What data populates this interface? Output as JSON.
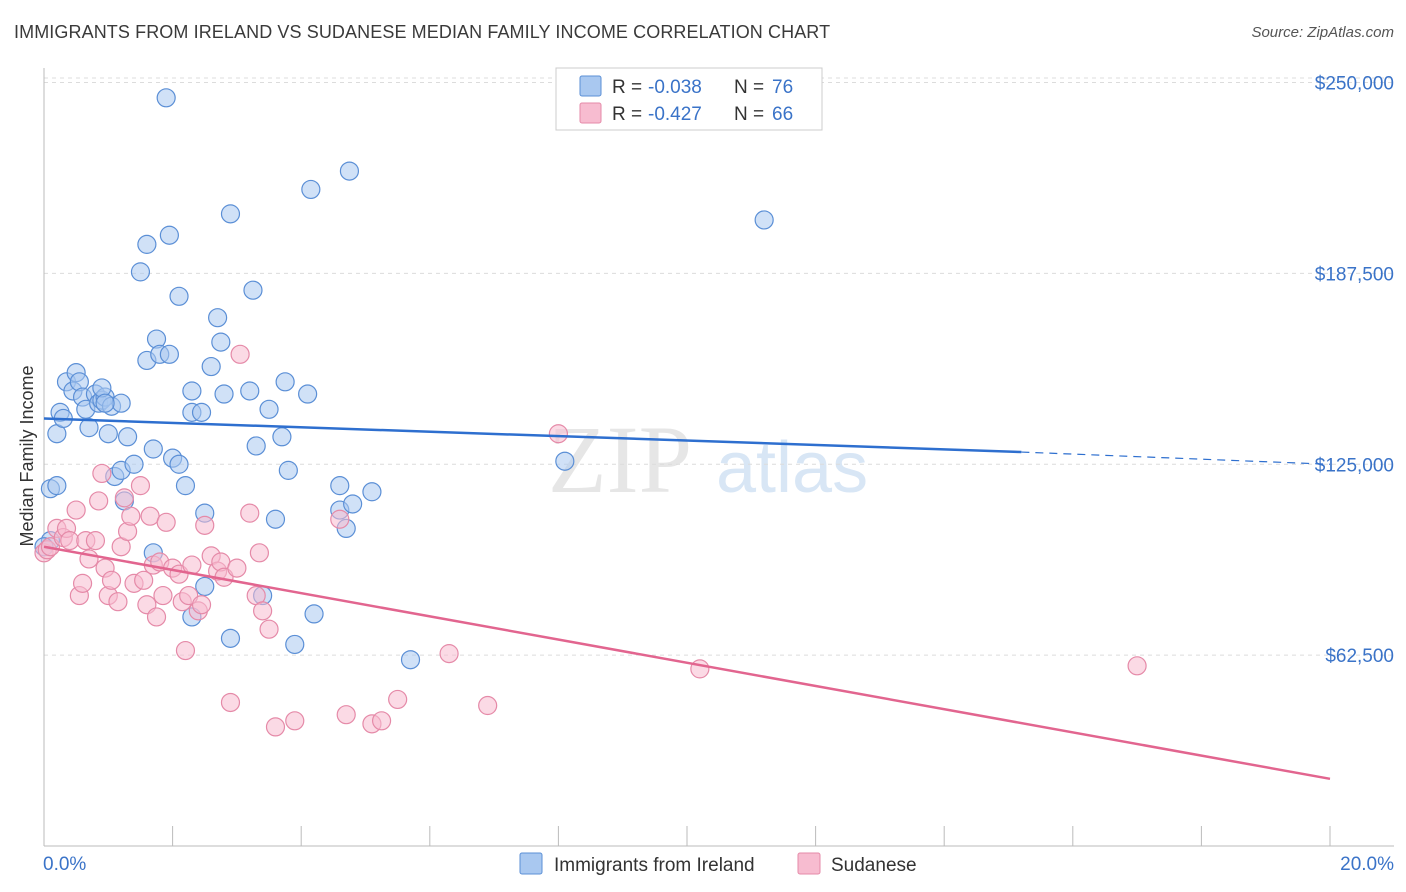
{
  "title": "IMMIGRANTS FROM IRELAND VS SUDANESE MEDIAN FAMILY INCOME CORRELATION CHART",
  "source": "Source: ZipAtlas.com",
  "watermark": {
    "zip": "ZIP",
    "atlas": "atlas"
  },
  "colors": {
    "ireland_fill": "#a9c8f0",
    "ireland_stroke": "#5b8fd6",
    "ireland_line": "#2e6fcf",
    "sudanese_fill": "#f7bcd0",
    "sudanese_stroke": "#e58aa8",
    "sudanese_line": "#e2658f",
    "tick_label": "#3a73c8",
    "grid": "#dcdcdc"
  },
  "legend": {
    "ireland": {
      "r_label": "R = ",
      "r_value": "-0.038",
      "n_label": "N = ",
      "n_value": "76"
    },
    "sudanese": {
      "r_label": "R = ",
      "r_value": "-0.427",
      "n_label": "N = ",
      "n_value": "66"
    }
  },
  "chart_data": {
    "type": "scatter",
    "ylabel": "Median Family Income",
    "xlim": [
      0,
      20
    ],
    "ylim": [
      0,
      260000
    ],
    "x_tick_labels": [
      "0.0%",
      "20.0%"
    ],
    "y_ticks": [
      62500,
      125000,
      187500,
      250000
    ],
    "y_tick_labels": [
      "$62,500",
      "$125,000",
      "$187,500",
      "$250,000"
    ],
    "series": [
      {
        "name": "Immigrants from Ireland",
        "trend": {
          "x0": 0.0,
          "y0": 140000,
          "x1": 15.2,
          "y1": 129000,
          "dash_x1": 20.0,
          "dash_y1": 125000
        },
        "points": [
          [
            0.1,
            117000
          ],
          [
            0.2,
            118000
          ],
          [
            0.1,
            100000
          ],
          [
            0.0,
            98000
          ],
          [
            0.2,
            135000
          ],
          [
            0.25,
            142000
          ],
          [
            0.3,
            140000
          ],
          [
            0.35,
            152000
          ],
          [
            0.45,
            149000
          ],
          [
            0.5,
            155000
          ],
          [
            0.55,
            152000
          ],
          [
            0.6,
            147000
          ],
          [
            0.65,
            143000
          ],
          [
            0.7,
            137000
          ],
          [
            0.8,
            148000
          ],
          [
            0.85,
            145000
          ],
          [
            0.9,
            146000
          ],
          [
            0.95,
            147000
          ],
          [
            0.9,
            150000
          ],
          [
            1.05,
            144000
          ],
          [
            1.2,
            145000
          ],
          [
            1.3,
            134000
          ],
          [
            0.95,
            145000
          ],
          [
            1.0,
            135000
          ],
          [
            1.1,
            121000
          ],
          [
            1.2,
            123000
          ],
          [
            1.25,
            113000
          ],
          [
            1.4,
            125000
          ],
          [
            1.5,
            188000
          ],
          [
            1.6,
            197000
          ],
          [
            1.6,
            159000
          ],
          [
            1.7,
            130000
          ],
          [
            1.75,
            166000
          ],
          [
            1.8,
            161000
          ],
          [
            1.9,
            245000
          ],
          [
            1.95,
            161000
          ],
          [
            1.95,
            200000
          ],
          [
            2.0,
            127000
          ],
          [
            2.1,
            125000
          ],
          [
            2.1,
            180000
          ],
          [
            2.2,
            118000
          ],
          [
            2.3,
            142000
          ],
          [
            2.3,
            149000
          ],
          [
            2.45,
            142000
          ],
          [
            2.5,
            109000
          ],
          [
            2.6,
            157000
          ],
          [
            2.7,
            173000
          ],
          [
            2.75,
            165000
          ],
          [
            2.8,
            148000
          ],
          [
            2.9,
            207000
          ],
          [
            3.2,
            149000
          ],
          [
            3.25,
            182000
          ],
          [
            3.3,
            131000
          ],
          [
            3.4,
            82000
          ],
          [
            3.5,
            143000
          ],
          [
            3.6,
            107000
          ],
          [
            3.7,
            134000
          ],
          [
            3.75,
            152000
          ],
          [
            3.8,
            123000
          ],
          [
            3.9,
            66000
          ],
          [
            4.1,
            148000
          ],
          [
            4.15,
            215000
          ],
          [
            4.2,
            76000
          ],
          [
            4.6,
            118000
          ],
          [
            4.6,
            110000
          ],
          [
            4.7,
            104000
          ],
          [
            4.75,
            221000
          ],
          [
            4.8,
            112000
          ],
          [
            5.1,
            116000
          ],
          [
            5.7,
            61000
          ],
          [
            8.1,
            126000
          ],
          [
            11.2,
            205000
          ],
          [
            1.7,
            96000
          ],
          [
            2.5,
            85000
          ],
          [
            2.9,
            68000
          ],
          [
            2.3,
            75000
          ]
        ]
      },
      {
        "name": "Sudanese",
        "trend": {
          "x0": 0.0,
          "y0": 98000,
          "x1": 20.0,
          "y1": 22000
        },
        "points": [
          [
            0.0,
            96000
          ],
          [
            0.05,
            97000
          ],
          [
            0.1,
            98000
          ],
          [
            0.2,
            104000
          ],
          [
            0.3,
            101000
          ],
          [
            0.35,
            104000
          ],
          [
            0.4,
            100000
          ],
          [
            0.5,
            110000
          ],
          [
            0.55,
            82000
          ],
          [
            0.6,
            86000
          ],
          [
            0.65,
            100000
          ],
          [
            0.7,
            94000
          ],
          [
            0.8,
            100000
          ],
          [
            0.85,
            113000
          ],
          [
            0.9,
            122000
          ],
          [
            0.95,
            91000
          ],
          [
            1.0,
            82000
          ],
          [
            1.05,
            87000
          ],
          [
            1.15,
            80000
          ],
          [
            1.2,
            98000
          ],
          [
            1.25,
            114000
          ],
          [
            1.3,
            103000
          ],
          [
            1.35,
            108000
          ],
          [
            1.4,
            86000
          ],
          [
            1.5,
            118000
          ],
          [
            1.55,
            87000
          ],
          [
            1.6,
            79000
          ],
          [
            1.65,
            108000
          ],
          [
            1.7,
            92000
          ],
          [
            1.75,
            75000
          ],
          [
            1.8,
            93000
          ],
          [
            1.85,
            82000
          ],
          [
            1.9,
            106000
          ],
          [
            2.0,
            91000
          ],
          [
            2.1,
            89000
          ],
          [
            2.15,
            80000
          ],
          [
            2.2,
            64000
          ],
          [
            2.25,
            82000
          ],
          [
            2.3,
            92000
          ],
          [
            2.4,
            77000
          ],
          [
            2.45,
            79000
          ],
          [
            2.5,
            105000
          ],
          [
            2.6,
            95000
          ],
          [
            2.7,
            90000
          ],
          [
            2.75,
            93000
          ],
          [
            2.8,
            88000
          ],
          [
            2.9,
            47000
          ],
          [
            3.0,
            91000
          ],
          [
            3.05,
            161000
          ],
          [
            3.2,
            109000
          ],
          [
            3.3,
            82000
          ],
          [
            3.4,
            77000
          ],
          [
            3.5,
            71000
          ],
          [
            3.6,
            39000
          ],
          [
            3.9,
            41000
          ],
          [
            4.6,
            107000
          ],
          [
            4.7,
            43000
          ],
          [
            5.1,
            40000
          ],
          [
            5.25,
            41000
          ],
          [
            5.5,
            48000
          ],
          [
            6.3,
            63000
          ],
          [
            6.9,
            46000
          ],
          [
            8.0,
            135000
          ],
          [
            10.2,
            58000
          ],
          [
            17.0,
            59000
          ],
          [
            3.35,
            96000
          ]
        ]
      }
    ]
  }
}
